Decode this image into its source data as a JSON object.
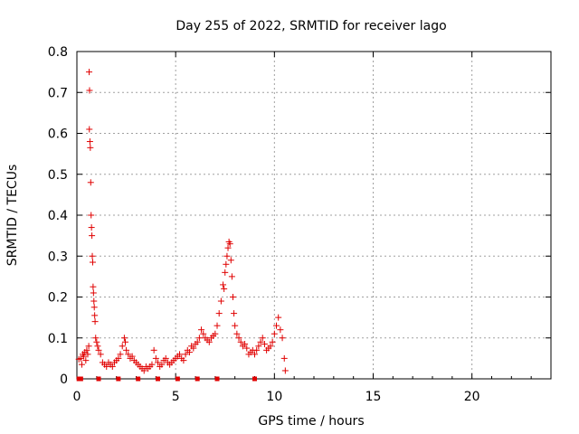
{
  "chart_data": {
    "type": "scatter",
    "title": "Day 255 of 2022, SRMTID for receiver lago",
    "xlabel": "GPS time / hours",
    "ylabel": "SRMTID / TECUs",
    "xlim": [
      0,
      24
    ],
    "ylim": [
      0,
      0.8
    ],
    "xticks": [
      0,
      5,
      10,
      15,
      20
    ],
    "xtick_labels": [
      "0",
      "5",
      "10",
      "15",
      "20"
    ],
    "yticks": [
      0,
      0.1,
      0.2,
      0.3,
      0.4,
      0.5,
      0.6,
      0.7,
      0.8
    ],
    "ytick_labels": [
      "0",
      "0.1",
      "0.2",
      "0.3",
      "0.4",
      "0.5",
      "0.6",
      "0.7",
      "0.8"
    ],
    "grid": true,
    "marker": "+",
    "color": "#e00000",
    "series": [
      {
        "name": "SRMTID",
        "points": [
          [
            0.1,
            0.048
          ],
          [
            0.2,
            0.05
          ],
          [
            0.25,
            0.035
          ],
          [
            0.3,
            0.06
          ],
          [
            0.35,
            0.055
          ],
          [
            0.4,
            0.065
          ],
          [
            0.45,
            0.045
          ],
          [
            0.5,
            0.07
          ],
          [
            0.55,
            0.06
          ],
          [
            0.6,
            0.08
          ],
          [
            0.62,
            0.75
          ],
          [
            0.64,
            0.705
          ],
          [
            0.63,
            0.61
          ],
          [
            0.66,
            0.58
          ],
          [
            0.68,
            0.565
          ],
          [
            0.7,
            0.48
          ],
          [
            0.72,
            0.4
          ],
          [
            0.74,
            0.37
          ],
          [
            0.76,
            0.35
          ],
          [
            0.78,
            0.3
          ],
          [
            0.8,
            0.285
          ],
          [
            0.82,
            0.225
          ],
          [
            0.84,
            0.21
          ],
          [
            0.86,
            0.19
          ],
          [
            0.88,
            0.175
          ],
          [
            0.9,
            0.155
          ],
          [
            0.92,
            0.14
          ],
          [
            0.95,
            0.1
          ],
          [
            1.0,
            0.09
          ],
          [
            1.05,
            0.08
          ],
          [
            1.1,
            0.07
          ],
          [
            1.2,
            0.06
          ],
          [
            1.3,
            0.04
          ],
          [
            1.4,
            0.035
          ],
          [
            1.5,
            0.03
          ],
          [
            1.6,
            0.04
          ],
          [
            1.7,
            0.035
          ],
          [
            1.8,
            0.03
          ],
          [
            1.9,
            0.04
          ],
          [
            2.0,
            0.045
          ],
          [
            2.1,
            0.05
          ],
          [
            2.2,
            0.06
          ],
          [
            2.3,
            0.08
          ],
          [
            2.4,
            0.1
          ],
          [
            2.45,
            0.09
          ],
          [
            2.5,
            0.07
          ],
          [
            2.6,
            0.06
          ],
          [
            2.7,
            0.05
          ],
          [
            2.8,
            0.055
          ],
          [
            2.9,
            0.045
          ],
          [
            3.0,
            0.04
          ],
          [
            3.1,
            0.035
          ],
          [
            3.2,
            0.03
          ],
          [
            3.3,
            0.025
          ],
          [
            3.4,
            0.02
          ],
          [
            3.5,
            0.03
          ],
          [
            3.6,
            0.025
          ],
          [
            3.7,
            0.03
          ],
          [
            3.8,
            0.035
          ],
          [
            3.9,
            0.07
          ],
          [
            4.0,
            0.05
          ],
          [
            4.1,
            0.04
          ],
          [
            4.2,
            0.03
          ],
          [
            4.3,
            0.035
          ],
          [
            4.4,
            0.045
          ],
          [
            4.5,
            0.05
          ],
          [
            4.6,
            0.04
          ],
          [
            4.7,
            0.035
          ],
          [
            4.8,
            0.04
          ],
          [
            4.9,
            0.045
          ],
          [
            5.0,
            0.05
          ],
          [
            5.1,
            0.055
          ],
          [
            5.2,
            0.06
          ],
          [
            5.3,
            0.05
          ],
          [
            5.4,
            0.045
          ],
          [
            5.5,
            0.06
          ],
          [
            5.6,
            0.07
          ],
          [
            5.7,
            0.065
          ],
          [
            5.8,
            0.08
          ],
          [
            5.9,
            0.075
          ],
          [
            6.0,
            0.085
          ],
          [
            6.1,
            0.09
          ],
          [
            6.2,
            0.1
          ],
          [
            6.3,
            0.12
          ],
          [
            6.4,
            0.11
          ],
          [
            6.5,
            0.1
          ],
          [
            6.6,
            0.095
          ],
          [
            6.7,
            0.09
          ],
          [
            6.8,
            0.1
          ],
          [
            6.9,
            0.105
          ],
          [
            7.0,
            0.11
          ],
          [
            7.1,
            0.13
          ],
          [
            7.2,
            0.16
          ],
          [
            7.3,
            0.19
          ],
          [
            7.4,
            0.23
          ],
          [
            7.45,
            0.22
          ],
          [
            7.5,
            0.26
          ],
          [
            7.55,
            0.28
          ],
          [
            7.6,
            0.3
          ],
          [
            7.65,
            0.32
          ],
          [
            7.7,
            0.335
          ],
          [
            7.75,
            0.33
          ],
          [
            7.8,
            0.29
          ],
          [
            7.85,
            0.25
          ],
          [
            7.9,
            0.2
          ],
          [
            7.95,
            0.16
          ],
          [
            8.0,
            0.13
          ],
          [
            8.1,
            0.11
          ],
          [
            8.2,
            0.1
          ],
          [
            8.3,
            0.09
          ],
          [
            8.4,
            0.08
          ],
          [
            8.5,
            0.085
          ],
          [
            8.6,
            0.075
          ],
          [
            8.7,
            0.06
          ],
          [
            8.8,
            0.065
          ],
          [
            8.9,
            0.07
          ],
          [
            9.0,
            0.06
          ],
          [
            9.1,
            0.07
          ],
          [
            9.2,
            0.08
          ],
          [
            9.3,
            0.09
          ],
          [
            9.4,
            0.1
          ],
          [
            9.5,
            0.085
          ],
          [
            9.6,
            0.07
          ],
          [
            9.7,
            0.075
          ],
          [
            9.8,
            0.08
          ],
          [
            9.9,
            0.09
          ],
          [
            10.0,
            0.11
          ],
          [
            10.1,
            0.13
          ],
          [
            10.2,
            0.15
          ],
          [
            10.3,
            0.12
          ],
          [
            10.4,
            0.1
          ],
          [
            10.5,
            0.05
          ],
          [
            10.55,
            0.02
          ]
        ]
      }
    ],
    "zero_markers_x": [
      0.1,
      0.2,
      1.1,
      2.1,
      3.1,
      4.1,
      5.1,
      6.1,
      7.1,
      9.0
    ]
  }
}
